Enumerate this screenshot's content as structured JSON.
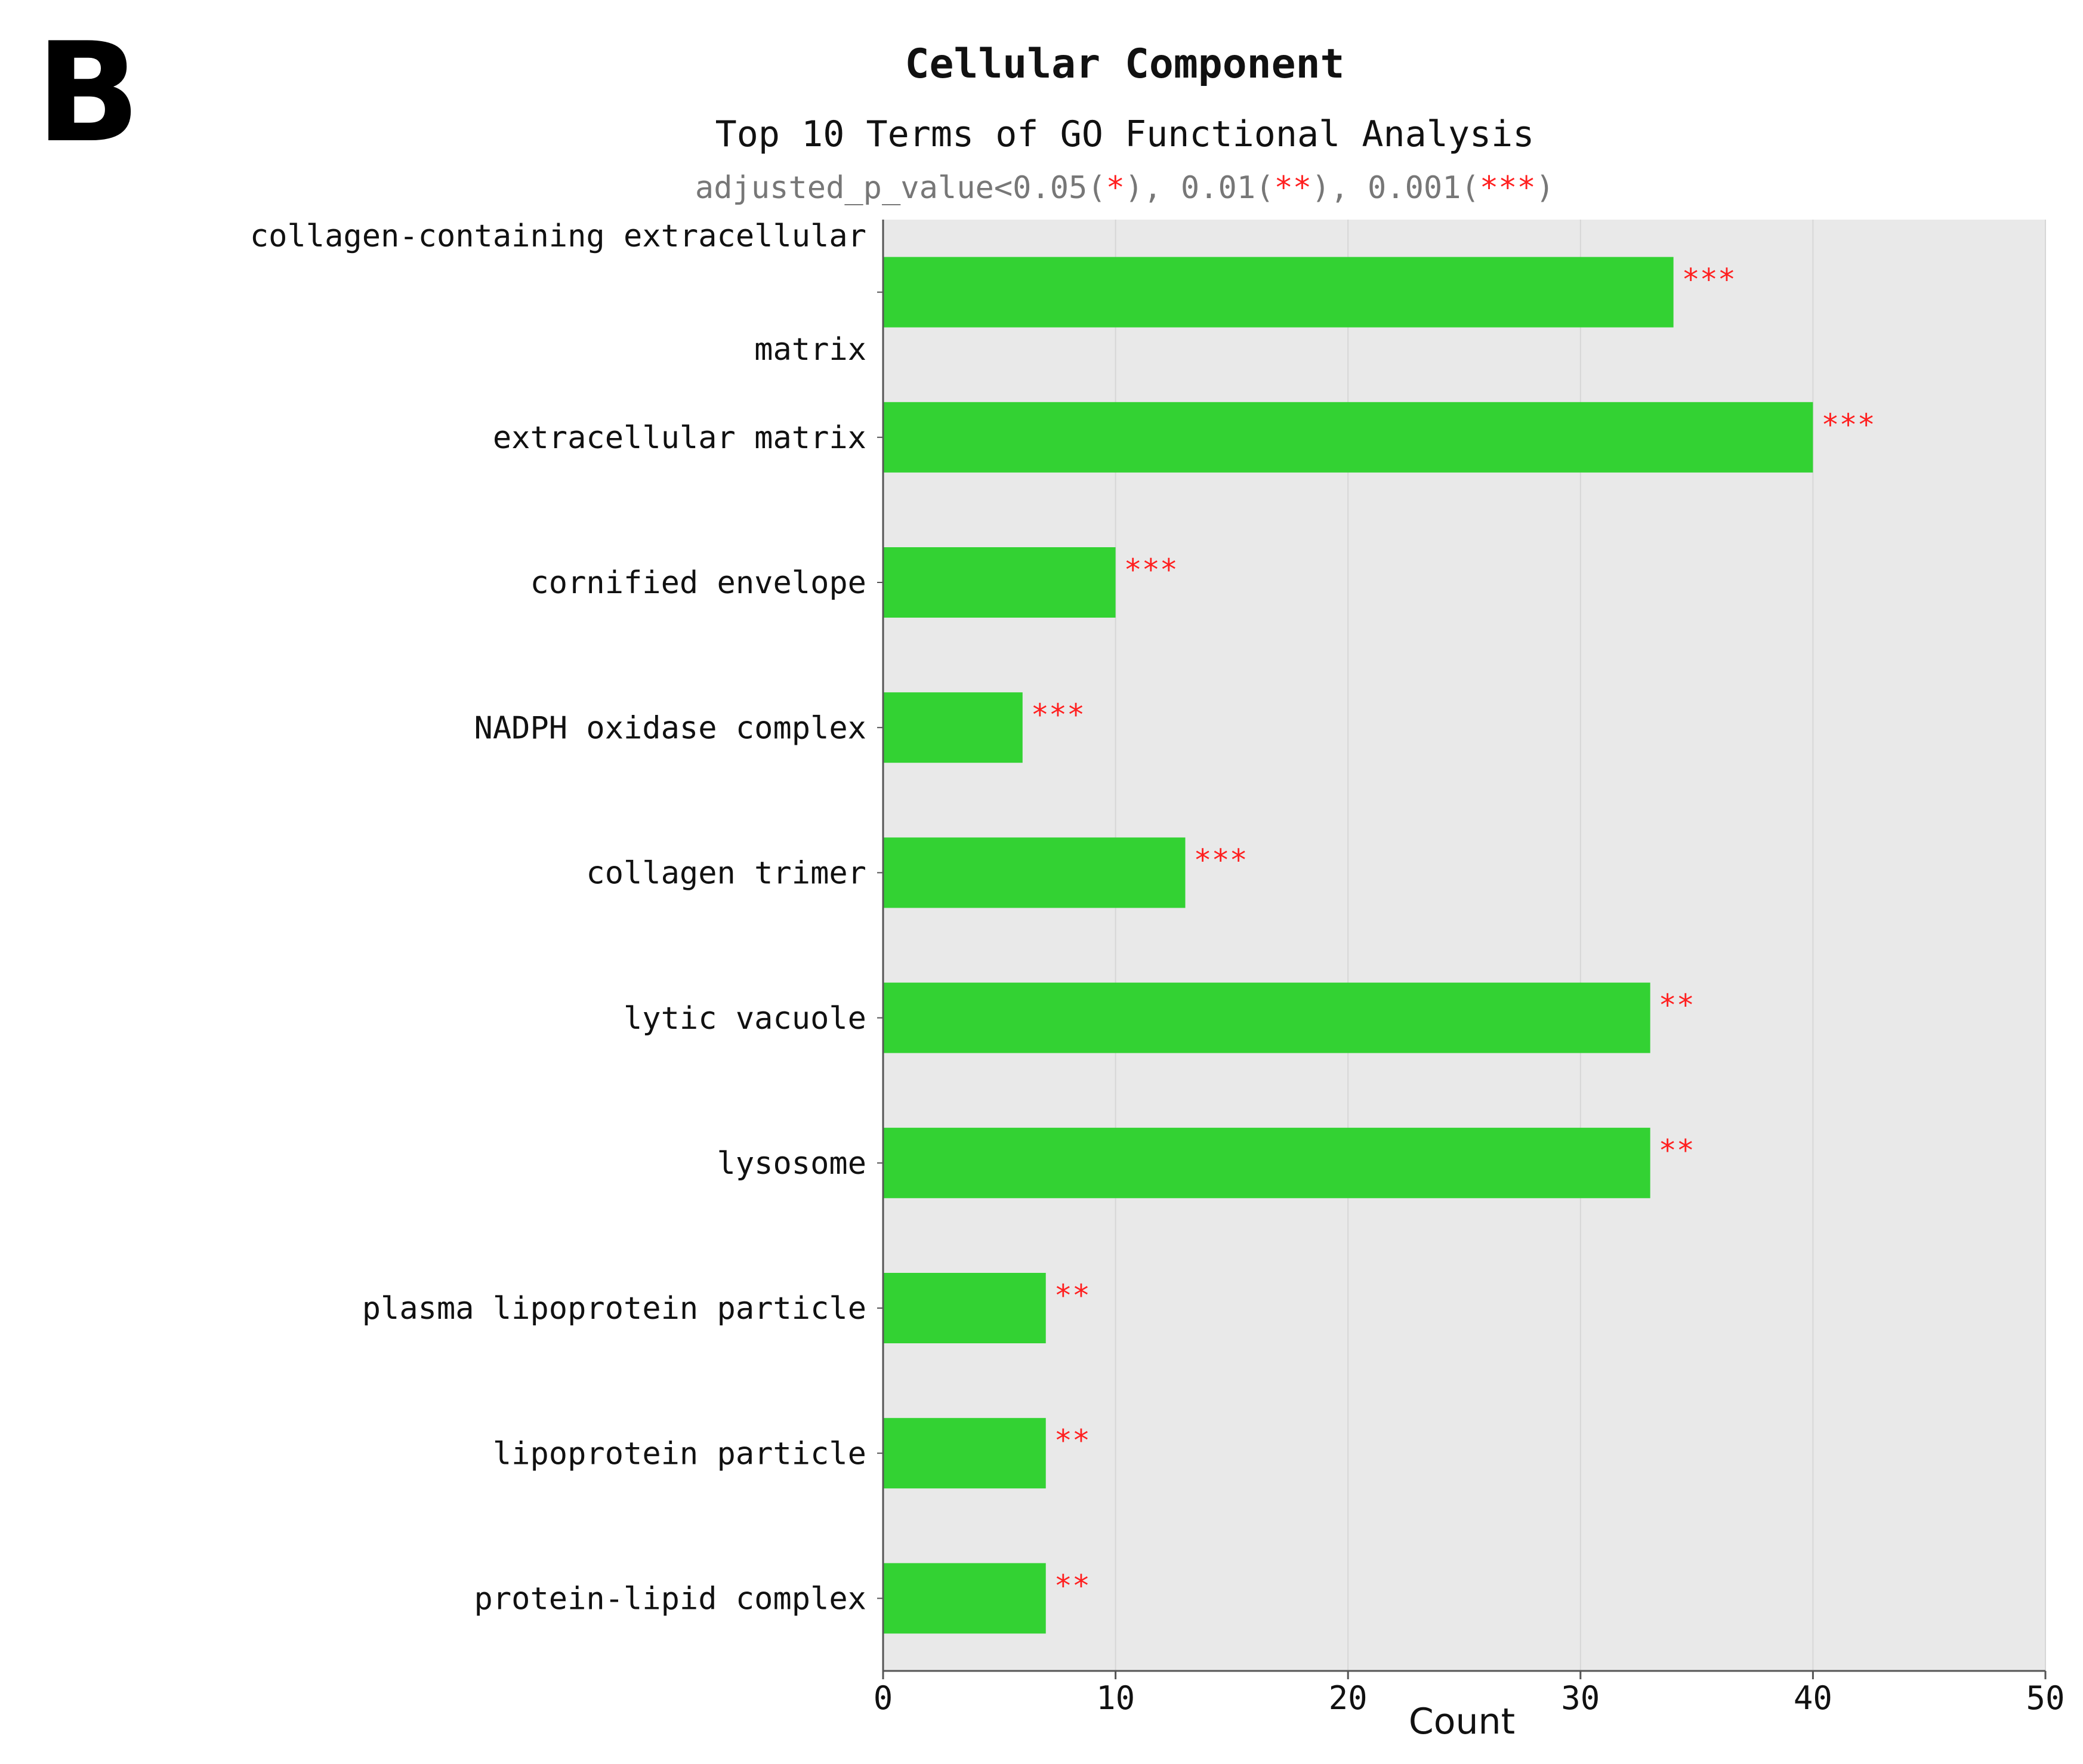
{
  "panel_label": "B",
  "chart_data": {
    "type": "bar",
    "orientation": "horizontal",
    "title": "Cellular Component",
    "subtitle": "Top 10 Terms of GO Functional Analysis",
    "significance_note": {
      "prefix": "adjusted_p_value<0.05(",
      "one_star": "*",
      "mid1": "), 0.01(",
      "two_star": "**",
      "mid2": "), 0.001(",
      "three_star": "***",
      "suffix": ")"
    },
    "xlabel": "Count",
    "xlim": [
      0,
      50
    ],
    "xticks": [
      0,
      10,
      20,
      30,
      40,
      50
    ],
    "grid": true,
    "categories": [
      [
        "collagen-containing extracellular",
        "matrix"
      ],
      [
        "extracellular matrix"
      ],
      [
        "cornified envelope"
      ],
      [
        "NADPH oxidase complex"
      ],
      [
        "collagen trimer"
      ],
      [
        "lytic vacuole"
      ],
      [
        "lysosome"
      ],
      [
        "plasma lipoprotein particle"
      ],
      [
        "lipoprotein particle"
      ],
      [
        "protein-lipid complex"
      ]
    ],
    "values": [
      34,
      40,
      10,
      6,
      13,
      33,
      33,
      7,
      7,
      7
    ],
    "significance": [
      "***",
      "***",
      "***",
      "***",
      "***",
      "**",
      "**",
      "**",
      "**",
      "**"
    ],
    "colors": {
      "bar": "#33d233",
      "plot_background": "#e9e9e9",
      "significance": "#ff1f1f",
      "note_text": "#777777",
      "grid": "#d6d6d6",
      "axis": "#555555",
      "text": "#111111"
    }
  }
}
